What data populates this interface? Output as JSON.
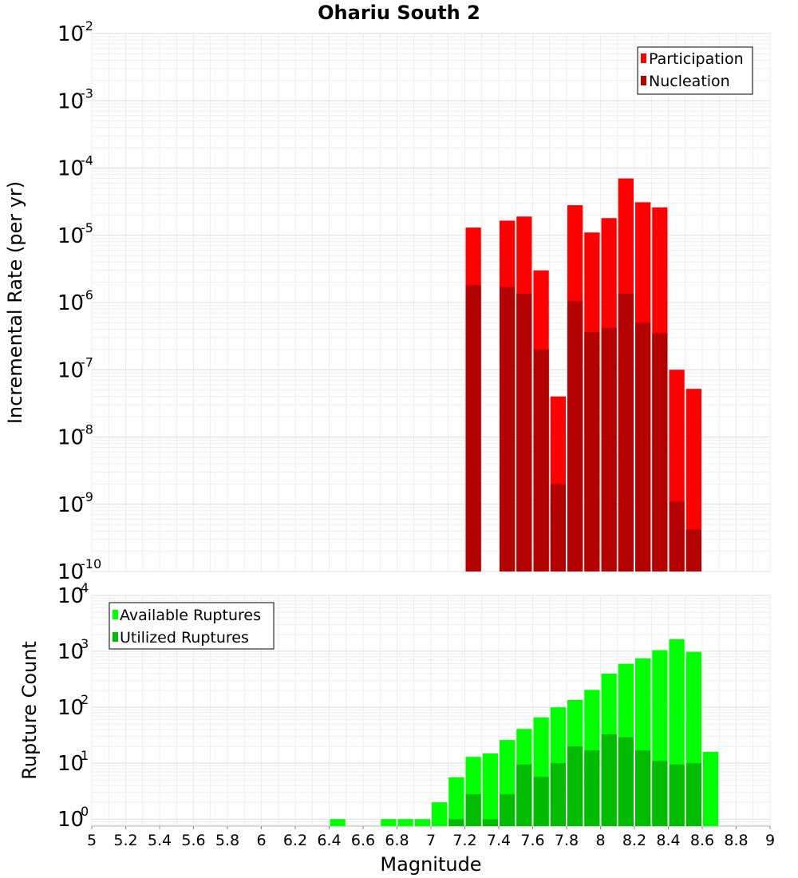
{
  "chart_data": [
    {
      "type": "bar",
      "title": "Ohariu South 2",
      "xlabel": "",
      "ylabel": "Incremental Rate (per yr)",
      "scale": "log",
      "ylim": [
        1e-10,
        0.01
      ],
      "xlim": [
        5,
        9
      ],
      "y_tick_exponents": [
        "-10",
        "-9",
        "-8",
        "-7",
        "-6",
        "-5",
        "-4",
        "-3",
        "-2"
      ],
      "grid": true,
      "legend_position": "top-right",
      "x": [
        7.25,
        7.45,
        7.55,
        7.65,
        7.75,
        7.85,
        7.95,
        8.05,
        8.15,
        8.25,
        8.35,
        8.45,
        8.55
      ],
      "series": [
        {
          "name": "Participation",
          "color": "#ff0000",
          "values": [
            1.3e-05,
            1.65e-05,
            1.9e-05,
            3e-06,
            4e-08,
            2.8e-05,
            1.1e-05,
            1.8e-05,
            7e-05,
            3.1e-05,
            2.6e-05,
            1e-07,
            5.2e-08
          ]
        },
        {
          "name": "Nucleation",
          "color": "#b30000",
          "values": [
            1.8e-06,
            1.7e-06,
            1.35e-06,
            2e-07,
            2e-09,
            1.05e-06,
            3.6e-07,
            4.2e-07,
            1.35e-06,
            5e-07,
            3.5e-07,
            1.1e-09,
            4.2e-10
          ]
        }
      ]
    },
    {
      "type": "bar",
      "xlabel": "Magnitude",
      "ylabel": "Rupture Count",
      "scale": "log",
      "ylim": [
        0.75,
        10000
      ],
      "xlim": [
        5,
        9
      ],
      "x_ticks": [
        "5",
        "5.2",
        "5.4",
        "5.6",
        "5.8",
        "6",
        "6.2",
        "6.4",
        "6.6",
        "6.8",
        "7",
        "7.2",
        "7.4",
        "7.6",
        "7.8",
        "8",
        "8.2",
        "8.4",
        "8.6",
        "8.8",
        "9"
      ],
      "y_tick_exponents": [
        "0",
        "1",
        "2",
        "3",
        "4"
      ],
      "grid": true,
      "legend_position": "top-left",
      "x": [
        6.45,
        6.75,
        6.85,
        6.95,
        7.05,
        7.15,
        7.25,
        7.35,
        7.45,
        7.55,
        7.65,
        7.75,
        7.85,
        7.95,
        8.05,
        8.15,
        8.25,
        8.35,
        8.45,
        8.55,
        8.65
      ],
      "series": [
        {
          "name": "Available Ruptures",
          "color": "#00ff00",
          "values": [
            1,
            1,
            1,
            1,
            2,
            5.6,
            13,
            15,
            26,
            41,
            66,
            100,
            135,
            205,
            400,
            600,
            750,
            1050,
            1650,
            980,
            16
          ]
        },
        {
          "name": "Utilized Ruptures",
          "color": "#00bb00",
          "values": [
            0,
            0,
            0,
            0,
            0,
            1,
            2.8,
            1,
            2.8,
            9.5,
            5.7,
            10,
            20,
            17,
            33,
            29,
            17,
            11,
            9.5,
            10,
            0
          ]
        }
      ]
    }
  ]
}
